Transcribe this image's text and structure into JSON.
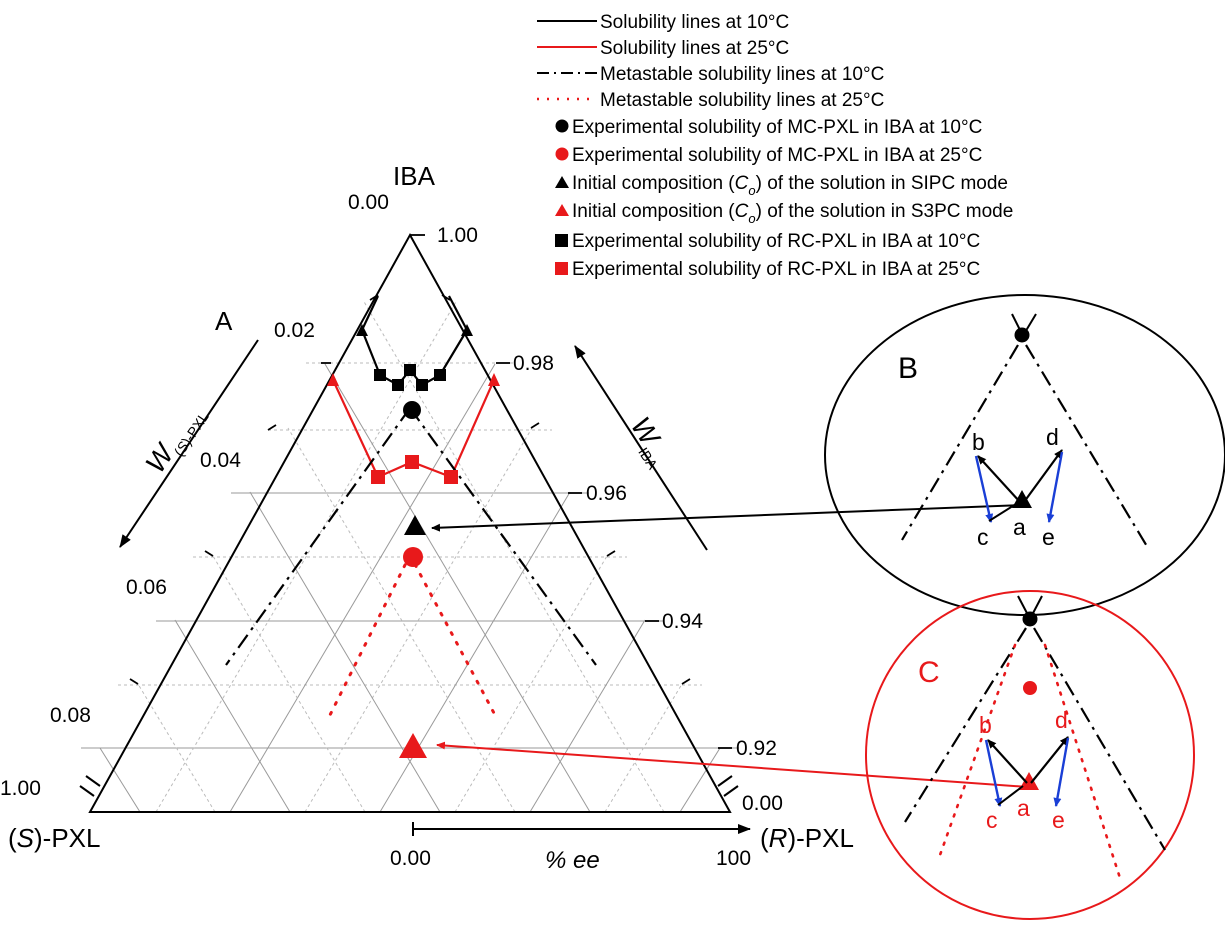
{
  "legend": [
    {
      "label": "Solubility lines at 10°C",
      "color": "#000000",
      "symbol": "solid-line"
    },
    {
      "label": "Solubility lines at 25°C",
      "color": "#e8191b",
      "symbol": "solid-line"
    },
    {
      "label": "Metastable solubility lines at 10°C",
      "color": "#000000",
      "symbol": "dash-dot-line"
    },
    {
      "label": "Metastable solubility lines at 25°C",
      "color": "#e8191b",
      "symbol": "dotted-line"
    },
    {
      "label": "Experimental solubility of MC-PXL in IBA at 10°C",
      "color": "#000000",
      "symbol": "circle"
    },
    {
      "label": "Experimental solubility of MC-PXL in IBA at 25°C",
      "color": "#e8191b",
      "symbol": "circle"
    },
    {
      "label_pre": "Initial composition (",
      "label_var": "C",
      "label_sub": "o",
      "label_post": ") of the solution in SIPC mode",
      "color": "#000000",
      "symbol": "triangle"
    },
    {
      "label_pre": "Initial composition (",
      "label_var": "C",
      "label_sub": "o",
      "label_post": ") of the solution in S3PC mode",
      "color": "#e8191b",
      "symbol": "triangle"
    },
    {
      "label": "Experimental solubility of RC-PXL in IBA at 10°C",
      "color": "#000000",
      "symbol": "square"
    },
    {
      "label": "Experimental solubility of RC-PXL in IBA at 25°C",
      "color": "#e8191b",
      "symbol": "square"
    }
  ],
  "panels": {
    "A": "A",
    "B": "B",
    "C": "C"
  },
  "vertices": {
    "top": "IBA",
    "left_prefix": "(",
    "left_var": "S",
    "left_suffix": ")-PXL",
    "right_prefix": "(",
    "right_var": "R",
    "right_suffix": ")-PXL"
  },
  "axes": {
    "left_title_var": "W",
    "left_title_sub_pre": "(",
    "left_title_sub_var": "S",
    "left_title_sub_post": ")-PXL",
    "right_title_var": "W",
    "right_title_sub": "IBA",
    "ee_title": "% ee",
    "ee_start": "0.00",
    "ee_end": "100"
  },
  "left_ticks": [
    "0.00",
    "0.02",
    "0.04",
    "0.06",
    "0.08",
    "1.00"
  ],
  "right_ticks": [
    "1.00",
    "0.98",
    "0.96",
    "0.94",
    "0.92",
    "0.00"
  ],
  "chart_data": {
    "type": "ternary-phase-diagram-zoom",
    "components": [
      "IBA",
      "(S)-PXL",
      "(R)-PXL"
    ],
    "w_IBA_range": [
      0.91,
      1.0
    ],
    "w_S_PXL_range": [
      0.0,
      0.09
    ],
    "solubility_10C": {
      "RC_PXL_squares": [
        {
          "w_S": 0.016,
          "w_R": 0.016
        },
        {
          "w_S": 0.013,
          "w_R": 0.0155
        },
        {
          "w_S": 0.0155,
          "w_R": 0.013
        }
      ],
      "MC_PXL_circle": {
        "w_S": 0.02,
        "w_R": 0.02
      },
      "branch_endpoints_w_S": [
        0.012,
        0.035
      ]
    },
    "solubility_25C": {
      "RC_PXL_squares": [
        {
          "w_S": 0.035,
          "w_R": 0.035
        },
        {
          "w_S": 0.0305,
          "w_R": 0.04
        },
        {
          "w_S": 0.04,
          "w_R": 0.0305
        }
      ],
      "MC_PXL_circle": {
        "w_S": 0.048,
        "w_R": 0.048
      },
      "branch_endpoints_w_S": [
        0.018,
        0.06
      ]
    },
    "initial_composition_SIPC": {
      "w_S": 0.0405,
      "w_R": 0.0405
    },
    "initial_composition_S3PC": {
      "w_S": 0.07,
      "w_R": 0.07
    },
    "inset_points": [
      "a",
      "b",
      "c",
      "d",
      "e"
    ]
  },
  "colors": {
    "black": "#000000",
    "red": "#e8191b",
    "blue": "#1a3fd6",
    "grid": "#9a9a9a"
  }
}
